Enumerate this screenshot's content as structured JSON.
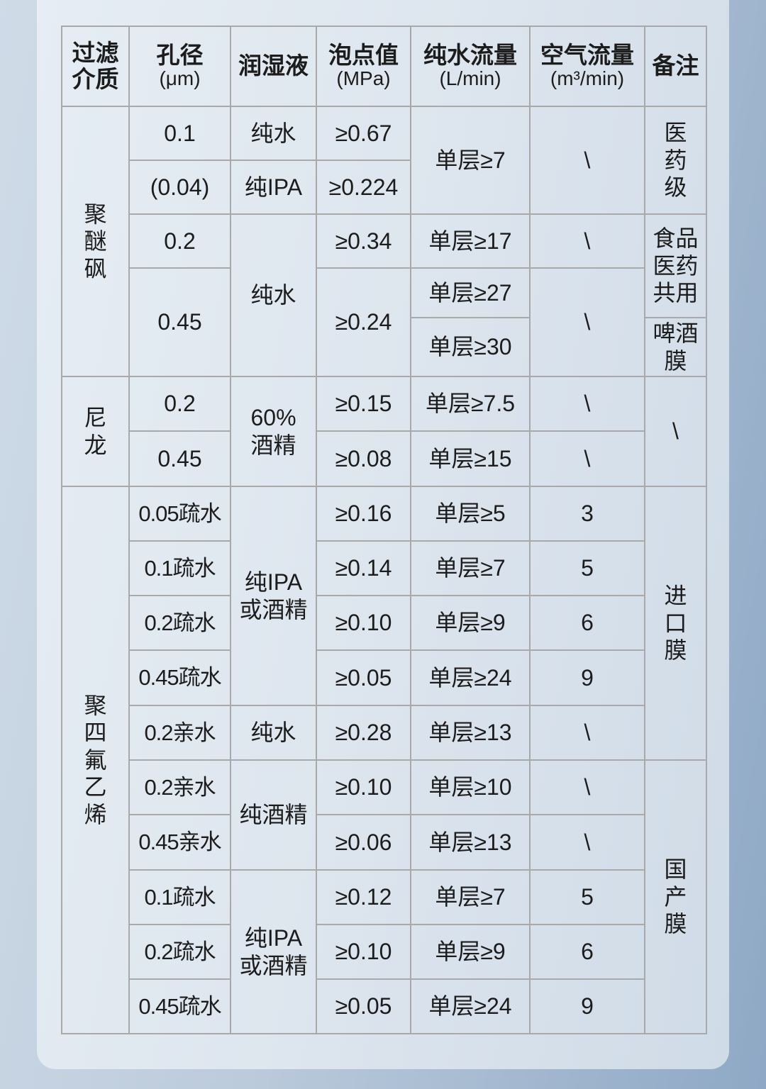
{
  "header": [
    {
      "main": "过滤\n介质",
      "unit": ""
    },
    {
      "main": "孔径",
      "unit": "(μm)"
    },
    {
      "main": "润湿液",
      "unit": ""
    },
    {
      "main": "泡点值",
      "unit": "(MPa)"
    },
    {
      "main": "纯水流量",
      "unit": "(L/min)"
    },
    {
      "main": "空气流量",
      "unit": "(m³/min)"
    },
    {
      "main": "备注",
      "unit": ""
    }
  ],
  "medium": [
    "聚\n醚\n砜",
    "尼\n龙",
    "聚\n四\n氟\n乙\n烯"
  ],
  "pore": [
    "0.1",
    "(0.04)",
    "0.2",
    "0.45",
    "0.2",
    "0.45",
    "0.05疏水",
    "0.1疏水",
    "0.2疏水",
    "0.45疏水",
    "0.2亲水",
    "0.2亲水",
    "0.45亲水",
    "0.1疏水",
    "0.2疏水",
    "0.45疏水"
  ],
  "wetting": [
    "纯水",
    "纯IPA",
    "纯水",
    "60%\n酒精",
    "纯IPA\n或酒精",
    "纯水",
    "纯酒精",
    "纯IPA\n或酒精"
  ],
  "bubble": [
    "≥0.67",
    "≥0.224",
    "≥0.34",
    "≥0.24",
    "≥0.15",
    "≥0.08",
    "≥0.16",
    "≥0.14",
    "≥0.10",
    "≥0.05",
    "≥0.28",
    "≥0.10",
    "≥0.06",
    "≥0.12",
    "≥0.10",
    "≥0.05"
  ],
  "water_flow": [
    "单层≥7",
    "单层≥17",
    "单层≥27",
    "单层≥30",
    "单层≥7.5",
    "单层≥15",
    "单层≥5",
    "单层≥7",
    "单层≥9",
    "单层≥24",
    "单层≥13",
    "单层≥10",
    "单层≥13",
    "单层≥7",
    "单层≥9",
    "单层≥24"
  ],
  "air_flow": [
    "\\",
    "\\",
    "\\",
    "\\",
    "\\",
    "3",
    "5",
    "6",
    "9",
    "\\",
    "\\",
    "\\",
    "5",
    "6",
    "9"
  ],
  "note": [
    "医\n药\n级",
    "食品\n医药\n共用",
    "啤酒\n膜",
    "\\",
    "进\n口\n膜",
    "国\n产\n膜"
  ]
}
